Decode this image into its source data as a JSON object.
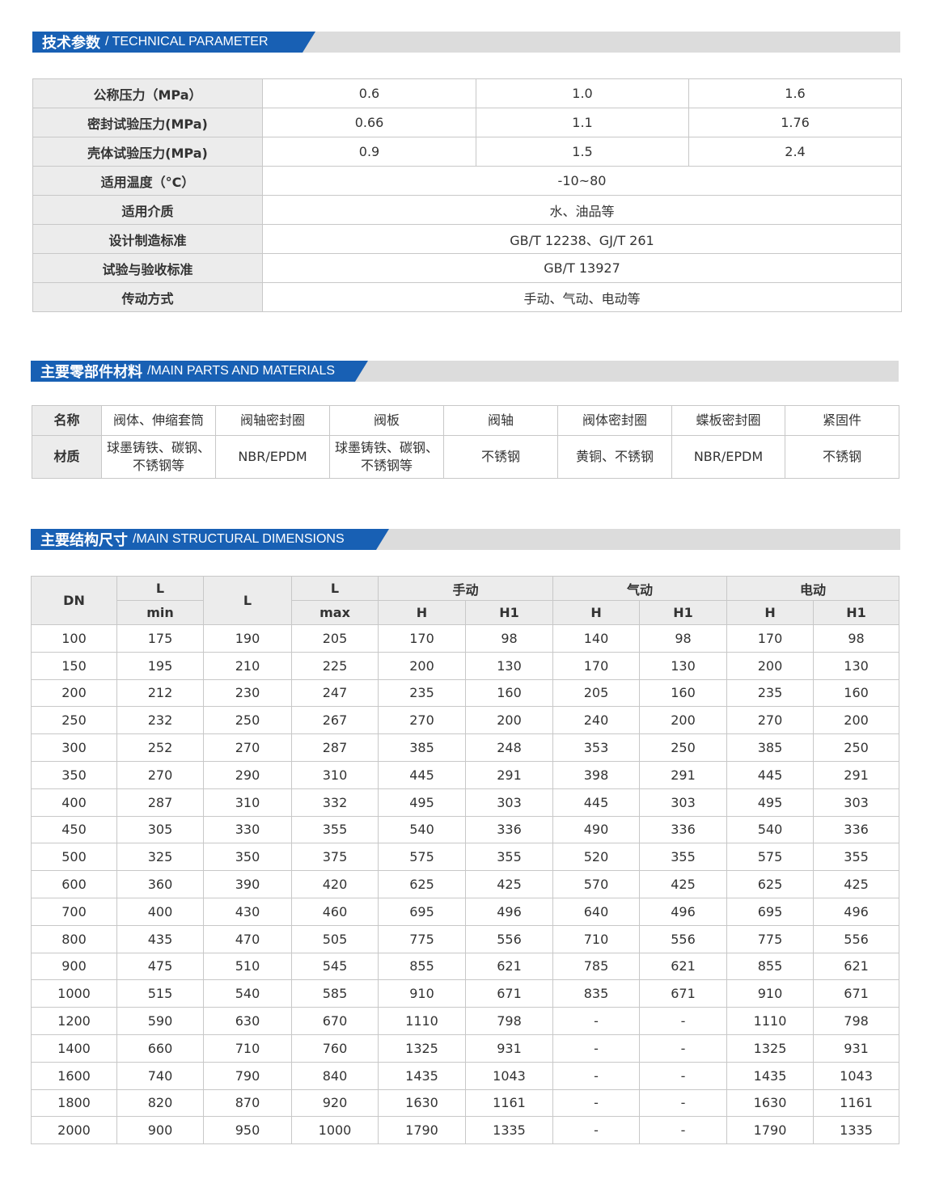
{
  "sections": {
    "technical": {
      "title_cn": "技术参数",
      "title_en": "/ TECHNICAL PARAMETER"
    },
    "parts": {
      "title_cn": "主要零部件材料",
      "title_en": "/MAIN PARTS AND MATERIALS"
    },
    "dimensions": {
      "title_cn": "主要结构尺寸",
      "title_en": "/MAIN STRUCTURAL DIMENSIONS"
    }
  },
  "technical": {
    "rows3": [
      {
        "label": "公称压力（MPa）",
        "values": [
          "0.6",
          "1.0",
          "1.6"
        ]
      },
      {
        "label": "密封试验压力(MPa)",
        "values": [
          "0.66",
          "1.1",
          "1.76"
        ]
      },
      {
        "label": "壳体试验压力(MPa)",
        "values": [
          "0.9",
          "1.5",
          "2.4"
        ]
      }
    ],
    "rows1": [
      {
        "label": "适用温度（°C）",
        "value": "-10~80"
      },
      {
        "label": "适用介质",
        "value": "水、油品等"
      },
      {
        "label": "设计制造标准",
        "value": "GB/T 12238、GJ/T 261"
      },
      {
        "label": "试验与验收标准",
        "value": "GB/T 13927"
      },
      {
        "label": "传动方式",
        "value": "手动、气动、电动等"
      }
    ]
  },
  "parts": {
    "name_label": "名称",
    "material_label": "材质",
    "names": [
      "阀体、伸缩套筒",
      "阀轴密封圈",
      "阀板",
      "阀轴",
      "阀体密封圈",
      "蝶板密封圈",
      "紧固件"
    ],
    "materials": [
      [
        "球墨铸铁、碳钢、",
        "不锈钢等"
      ],
      [
        "NBR/EPDM"
      ],
      [
        "球墨铸铁、碳钢、",
        "不锈钢等"
      ],
      [
        "不锈钢"
      ],
      [
        "黄铜、不锈钢"
      ],
      [
        "NBR/EPDM"
      ],
      [
        "不锈钢"
      ]
    ]
  },
  "dimensions": {
    "headers": {
      "dn": "DN",
      "lmin_top": "L",
      "lmin_bottom": "min",
      "l": "L",
      "lmax_top": "L",
      "lmax_bottom": "max",
      "manual": "手动",
      "pneumatic": "气动",
      "electric": "电动",
      "h": "H",
      "h1": "H1"
    },
    "rows": [
      [
        "100",
        "175",
        "190",
        "205",
        "170",
        "98",
        "140",
        "98",
        "170",
        "98"
      ],
      [
        "150",
        "195",
        "210",
        "225",
        "200",
        "130",
        "170",
        "130",
        "200",
        "130"
      ],
      [
        "200",
        "212",
        "230",
        "247",
        "235",
        "160",
        "205",
        "160",
        "235",
        "160"
      ],
      [
        "250",
        "232",
        "250",
        "267",
        "270",
        "200",
        "240",
        "200",
        "270",
        "200"
      ],
      [
        "300",
        "252",
        "270",
        "287",
        "385",
        "248",
        "353",
        "250",
        "385",
        "250"
      ],
      [
        "350",
        "270",
        "290",
        "310",
        "445",
        "291",
        "398",
        "291",
        "445",
        "291"
      ],
      [
        "400",
        "287",
        "310",
        "332",
        "495",
        "303",
        "445",
        "303",
        "495",
        "303"
      ],
      [
        "450",
        "305",
        "330",
        "355",
        "540",
        "336",
        "490",
        "336",
        "540",
        "336"
      ],
      [
        "500",
        "325",
        "350",
        "375",
        "575",
        "355",
        "520",
        "355",
        "575",
        "355"
      ],
      [
        "600",
        "360",
        "390",
        "420",
        "625",
        "425",
        "570",
        "425",
        "625",
        "425"
      ],
      [
        "700",
        "400",
        "430",
        "460",
        "695",
        "496",
        "640",
        "496",
        "695",
        "496"
      ],
      [
        "800",
        "435",
        "470",
        "505",
        "775",
        "556",
        "710",
        "556",
        "775",
        "556"
      ],
      [
        "900",
        "475",
        "510",
        "545",
        "855",
        "621",
        "785",
        "621",
        "855",
        "621"
      ],
      [
        "1000",
        "515",
        "540",
        "585",
        "910",
        "671",
        "835",
        "671",
        "910",
        "671"
      ],
      [
        "1200",
        "590",
        "630",
        "670",
        "1110",
        "798",
        "-",
        "-",
        "1110",
        "798"
      ],
      [
        "1400",
        "660",
        "710",
        "760",
        "1325",
        "931",
        "-",
        "-",
        "1325",
        "931"
      ],
      [
        "1600",
        "740",
        "790",
        "840",
        "1435",
        "1043",
        "-",
        "-",
        "1435",
        "1043"
      ],
      [
        "1800",
        "820",
        "870",
        "920",
        "1630",
        "1161",
        "-",
        "-",
        "1630",
        "1161"
      ],
      [
        "2000",
        "900",
        "950",
        "1000",
        "1790",
        "1335",
        "-",
        "-",
        "1790",
        "1335"
      ]
    ]
  }
}
